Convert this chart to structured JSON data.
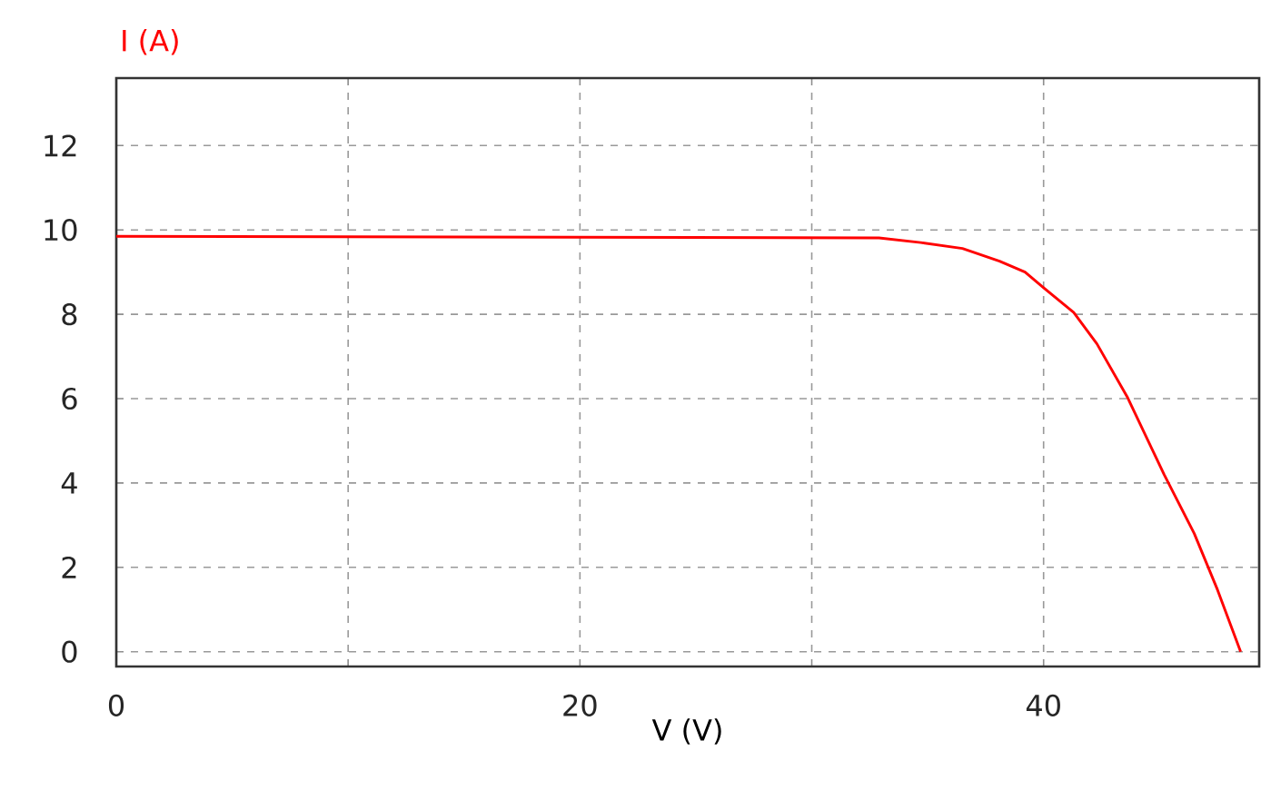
{
  "chart_data": {
    "type": "line",
    "xlabel": "V (V)",
    "ylabel": "I (A)",
    "x": [
      0,
      32.9,
      34.7,
      36.5,
      38.1,
      39.2,
      40.0,
      41.3,
      42.3,
      43.6,
      45.2,
      46.5,
      47.5,
      48.5
    ],
    "series": [
      {
        "color": "#ff0000",
        "values": [
          9.85,
          9.81,
          9.7,
          9.56,
          9.26,
          9.0,
          8.63,
          8.04,
          7.3,
          6.05,
          4.2,
          2.8,
          1.47,
          0
        ]
      }
    ],
    "xlim": [
      0,
      49.3
    ],
    "ylim": [
      -0.35,
      13.6
    ],
    "xticks": [
      0,
      {
        "value": 10,
        "label": null
      },
      20,
      {
        "value": 30,
        "label": null
      },
      40
    ],
    "yticks": [
      0,
      2,
      4,
      6,
      8,
      10,
      12
    ],
    "grid": true,
    "marker": "none",
    "line_style": "solid"
  }
}
